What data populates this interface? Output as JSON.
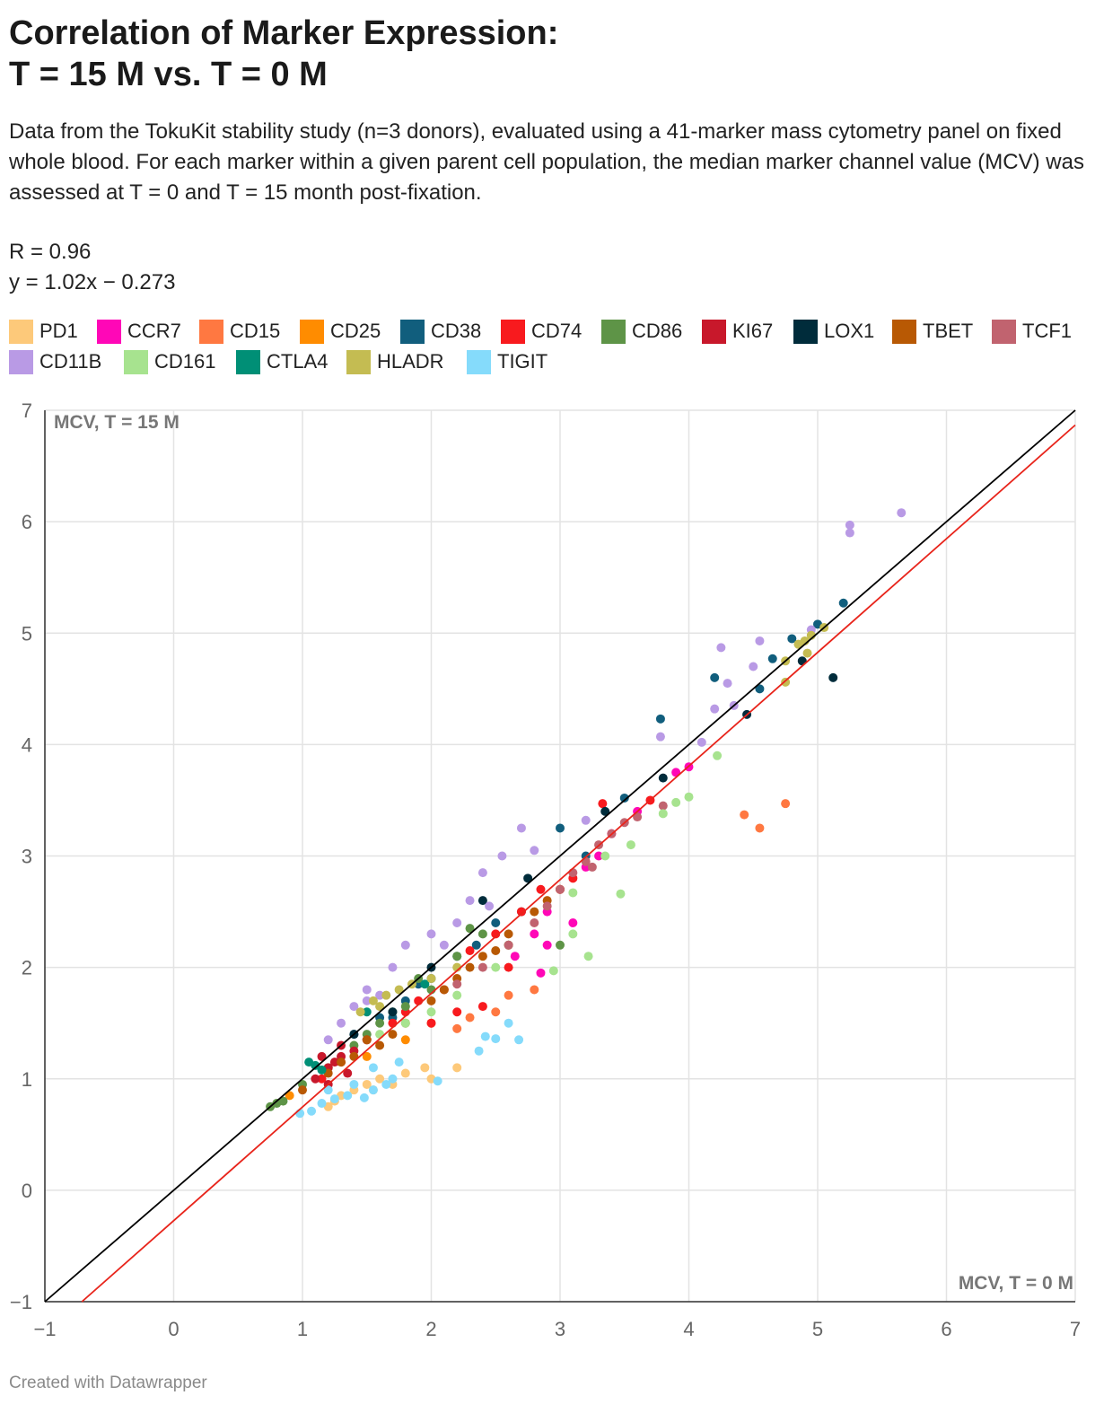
{
  "title_line1": "Correlation of Marker Expression:",
  "title_line2": "T = 15 M vs. T = 0 M",
  "description": "Data from the TokuKit stability study (n=3 donors), evaluated using a 41-marker mass cytometry panel on fixed whole blood. For each marker within a given parent cell population, the median marker channel value (MCV) was assessed at T = 0 and T = 15 month post-fixation.",
  "stats": {
    "r_label": "R = 0.96",
    "equation": "y = 1.02x − 0.273"
  },
  "footer": "Created with Datawrapper",
  "chart_data": {
    "type": "scatter",
    "title": "Correlation of Marker Expression: T = 15 M vs. T = 0 M",
    "xlabel": "MCV, T = 0 M",
    "ylabel": "MCV, T = 15 M",
    "xlim": [
      -1,
      7
    ],
    "ylim": [
      -1,
      7
    ],
    "xticks": [
      "−1",
      "0",
      "1",
      "2",
      "3",
      "4",
      "5",
      "6",
      "7"
    ],
    "yticks": [
      "−1",
      "0",
      "1",
      "2",
      "3",
      "4",
      "5",
      "6",
      "7"
    ],
    "grid": true,
    "identity_line": {
      "slope": 1,
      "intercept": 0,
      "color": "#000000"
    },
    "fit_line": {
      "slope": 1.02,
      "intercept": -0.273,
      "color": "#e8241b"
    },
    "series": [
      {
        "name": "PD1",
        "color": "#fdc97a",
        "points": [
          [
            1.25,
            0.8
          ],
          [
            1.3,
            0.85
          ],
          [
            1.4,
            0.9
          ],
          [
            1.5,
            0.95
          ],
          [
            1.55,
            0.9
          ],
          [
            1.6,
            1.0
          ],
          [
            1.7,
            0.95
          ],
          [
            1.8,
            1.05
          ],
          [
            1.95,
            1.1
          ],
          [
            2.0,
            1.0
          ],
          [
            2.2,
            1.1
          ],
          [
            1.2,
            0.75
          ]
        ]
      },
      {
        "name": "CCR7",
        "color": "#ff07b7",
        "points": [
          [
            2.65,
            2.1
          ],
          [
            2.8,
            2.3
          ],
          [
            2.9,
            2.5
          ],
          [
            3.0,
            2.7
          ],
          [
            3.2,
            2.9
          ],
          [
            3.4,
            3.2
          ],
          [
            3.6,
            3.4
          ],
          [
            3.9,
            3.75
          ],
          [
            4.0,
            3.8
          ],
          [
            2.85,
            1.95
          ],
          [
            3.1,
            2.4
          ],
          [
            2.9,
            2.2
          ],
          [
            3.3,
            3.0
          ]
        ]
      },
      {
        "name": "CD15",
        "color": "#ff7841",
        "points": [
          [
            4.43,
            3.37
          ],
          [
            4.55,
            3.25
          ],
          [
            4.75,
            3.47
          ],
          [
            2.2,
            1.45
          ],
          [
            2.5,
            1.6
          ],
          [
            2.8,
            1.8
          ],
          [
            2.3,
            1.55
          ],
          [
            2.6,
            1.75
          ]
        ]
      },
      {
        "name": "CD25",
        "color": "#ff8c00",
        "points": [
          [
            0.9,
            0.85
          ],
          [
            1.8,
            1.35
          ],
          [
            2.0,
            1.5
          ],
          [
            2.6,
            2.2
          ],
          [
            3.0,
            2.7
          ],
          [
            1.5,
            1.2
          ]
        ]
      },
      {
        "name": "CD38",
        "color": "#115e7d",
        "points": [
          [
            4.2,
            4.6
          ],
          [
            3.78,
            4.23
          ],
          [
            4.55,
            4.5
          ],
          [
            4.8,
            4.95
          ],
          [
            5.0,
            5.08
          ],
          [
            5.2,
            5.27
          ],
          [
            4.65,
            4.77
          ],
          [
            3.5,
            3.52
          ],
          [
            3.0,
            3.25
          ],
          [
            2.5,
            2.4
          ],
          [
            2.2,
            2.1
          ],
          [
            2.0,
            1.9
          ],
          [
            1.8,
            1.7
          ],
          [
            1.6,
            1.55
          ],
          [
            1.4,
            1.4
          ],
          [
            1.9,
            1.85
          ],
          [
            2.35,
            2.2
          ],
          [
            2.7,
            2.5
          ],
          [
            3.2,
            3.0
          ],
          [
            1.7,
            1.55
          ]
        ]
      },
      {
        "name": "CD74",
        "color": "#f81a1e",
        "points": [
          [
            3.7,
            3.5
          ],
          [
            3.33,
            3.47
          ],
          [
            2.85,
            2.7
          ],
          [
            2.7,
            2.5
          ],
          [
            2.5,
            2.3
          ],
          [
            2.3,
            2.15
          ],
          [
            2.1,
            1.8
          ],
          [
            1.9,
            1.7
          ],
          [
            1.7,
            1.5
          ],
          [
            1.5,
            1.35
          ],
          [
            1.3,
            1.15
          ],
          [
            1.15,
            1.0
          ],
          [
            2.0,
            1.5
          ],
          [
            2.2,
            1.6
          ],
          [
            2.4,
            1.65
          ],
          [
            3.1,
            2.8
          ],
          [
            2.6,
            2.0
          ],
          [
            1.8,
            1.6
          ]
        ]
      },
      {
        "name": "CD86",
        "color": "#5e9447",
        "points": [
          [
            0.75,
            0.75
          ],
          [
            0.8,
            0.78
          ],
          [
            0.85,
            0.8
          ],
          [
            1.0,
            0.95
          ],
          [
            1.2,
            1.1
          ],
          [
            1.4,
            1.3
          ],
          [
            1.6,
            1.5
          ],
          [
            1.8,
            1.65
          ],
          [
            2.0,
            1.8
          ],
          [
            2.2,
            2.1
          ],
          [
            2.4,
            2.3
          ],
          [
            2.6,
            2.2
          ],
          [
            3.0,
            2.2
          ],
          [
            1.9,
            1.9
          ],
          [
            2.3,
            2.35
          ],
          [
            1.5,
            1.4
          ],
          [
            1.7,
            1.6
          ]
        ]
      },
      {
        "name": "KI67",
        "color": "#c8182b",
        "points": [
          [
            1.1,
            1.0
          ],
          [
            1.2,
            1.1
          ],
          [
            1.3,
            1.2
          ],
          [
            1.4,
            1.25
          ],
          [
            1.25,
            1.15
          ],
          [
            1.35,
            1.05
          ],
          [
            1.15,
            1.2
          ],
          [
            1.3,
            1.3
          ],
          [
            1.5,
            1.35
          ],
          [
            1.2,
            0.95
          ]
        ]
      },
      {
        "name": "LOX1",
        "color": "#002c3b",
        "points": [
          [
            4.88,
            4.75
          ],
          [
            5.12,
            4.6
          ],
          [
            4.45,
            4.27
          ],
          [
            3.8,
            3.7
          ],
          [
            3.35,
            3.4
          ],
          [
            2.75,
            2.8
          ],
          [
            2.4,
            2.6
          ],
          [
            2.0,
            2.0
          ],
          [
            1.7,
            1.6
          ],
          [
            1.4,
            1.4
          ]
        ]
      },
      {
        "name": "TBET",
        "color": "#b85904",
        "points": [
          [
            1.0,
            0.9
          ],
          [
            1.2,
            1.05
          ],
          [
            1.4,
            1.2
          ],
          [
            1.6,
            1.3
          ],
          [
            1.8,
            1.5
          ],
          [
            2.0,
            1.7
          ],
          [
            2.2,
            1.9
          ],
          [
            2.4,
            2.1
          ],
          [
            2.6,
            2.3
          ],
          [
            2.8,
            2.5
          ],
          [
            3.0,
            2.7
          ],
          [
            1.5,
            1.35
          ],
          [
            1.7,
            1.4
          ],
          [
            2.1,
            1.8
          ],
          [
            2.3,
            2.0
          ],
          [
            1.3,
            1.15
          ],
          [
            2.5,
            2.15
          ],
          [
            2.9,
            2.6
          ]
        ]
      },
      {
        "name": "TCF1",
        "color": "#c1636f",
        "points": [
          [
            2.2,
            1.85
          ],
          [
            2.4,
            2.0
          ],
          [
            2.6,
            2.2
          ],
          [
            2.8,
            2.4
          ],
          [
            3.0,
            2.7
          ],
          [
            3.2,
            2.95
          ],
          [
            3.4,
            3.2
          ],
          [
            3.6,
            3.35
          ],
          [
            3.8,
            3.45
          ],
          [
            3.3,
            3.1
          ],
          [
            3.1,
            2.85
          ],
          [
            2.9,
            2.55
          ],
          [
            3.5,
            3.3
          ],
          [
            3.25,
            2.9
          ]
        ]
      },
      {
        "name": "CD11B",
        "color": "#b99ae5",
        "points": [
          [
            5.65,
            6.08
          ],
          [
            5.25,
            5.97
          ],
          [
            5.25,
            5.9
          ],
          [
            4.95,
            5.03
          ],
          [
            4.25,
            4.87
          ],
          [
            4.55,
            4.93
          ],
          [
            4.5,
            4.7
          ],
          [
            4.3,
            4.55
          ],
          [
            4.35,
            4.35
          ],
          [
            4.2,
            4.32
          ],
          [
            3.78,
            4.07
          ],
          [
            4.1,
            4.02
          ],
          [
            3.2,
            3.32
          ],
          [
            2.7,
            3.25
          ],
          [
            2.8,
            3.05
          ],
          [
            2.55,
            3.0
          ],
          [
            2.4,
            2.85
          ],
          [
            2.3,
            2.6
          ],
          [
            2.2,
            2.4
          ],
          [
            2.0,
            2.3
          ],
          [
            1.8,
            2.2
          ],
          [
            1.7,
            2.0
          ],
          [
            1.5,
            1.8
          ],
          [
            1.4,
            1.65
          ],
          [
            1.3,
            1.5
          ],
          [
            1.2,
            1.35
          ],
          [
            1.5,
            1.7
          ],
          [
            1.6,
            1.75
          ],
          [
            2.1,
            2.2
          ],
          [
            2.45,
            2.55
          ]
        ]
      },
      {
        "name": "CD161",
        "color": "#a7e38f",
        "points": [
          [
            3.22,
            2.1
          ],
          [
            3.47,
            2.66
          ],
          [
            4.22,
            3.9
          ],
          [
            4.0,
            3.53
          ],
          [
            3.9,
            3.48
          ],
          [
            3.8,
            3.38
          ],
          [
            3.55,
            3.1
          ],
          [
            3.35,
            3.0
          ],
          [
            3.1,
            2.67
          ],
          [
            3.1,
            2.3
          ],
          [
            2.95,
            1.97
          ],
          [
            2.2,
            1.75
          ],
          [
            2.0,
            1.6
          ],
          [
            1.8,
            1.5
          ],
          [
            1.6,
            1.4
          ],
          [
            2.5,
            2.0
          ]
        ]
      },
      {
        "name": "CTLA4",
        "color": "#008f76",
        "points": [
          [
            1.05,
            1.15
          ],
          [
            1.1,
            1.12
          ],
          [
            1.15,
            1.08
          ],
          [
            1.5,
            1.6
          ],
          [
            1.95,
            1.85
          ]
        ]
      },
      {
        "name": "HLADR",
        "color": "#c4bc52",
        "points": [
          [
            4.75,
            4.56
          ],
          [
            4.75,
            4.75
          ],
          [
            4.85,
            4.9
          ],
          [
            4.92,
            4.82
          ],
          [
            4.95,
            4.98
          ],
          [
            5.05,
            5.05
          ],
          [
            4.9,
            4.93
          ],
          [
            1.55,
            1.7
          ],
          [
            1.65,
            1.75
          ],
          [
            1.75,
            1.8
          ],
          [
            1.85,
            1.85
          ],
          [
            2.0,
            1.9
          ],
          [
            2.2,
            2.0
          ],
          [
            1.6,
            1.65
          ],
          [
            1.45,
            1.6
          ]
        ]
      },
      {
        "name": "TIGIT",
        "color": "#85dbfb",
        "points": [
          [
            0.98,
            0.69
          ],
          [
            1.07,
            0.71
          ],
          [
            1.15,
            0.78
          ],
          [
            1.25,
            0.82
          ],
          [
            1.35,
            0.85
          ],
          [
            1.48,
            0.83
          ],
          [
            1.55,
            0.9
          ],
          [
            1.65,
            0.95
          ],
          [
            1.7,
            1.0
          ],
          [
            1.75,
            1.15
          ],
          [
            2.05,
            0.98
          ],
          [
            2.37,
            1.25
          ],
          [
            2.42,
            1.38
          ],
          [
            2.5,
            1.36
          ],
          [
            2.6,
            1.5
          ],
          [
            2.68,
            1.35
          ],
          [
            1.55,
            1.1
          ],
          [
            1.2,
            0.9
          ],
          [
            1.4,
            0.95
          ]
        ]
      }
    ]
  }
}
